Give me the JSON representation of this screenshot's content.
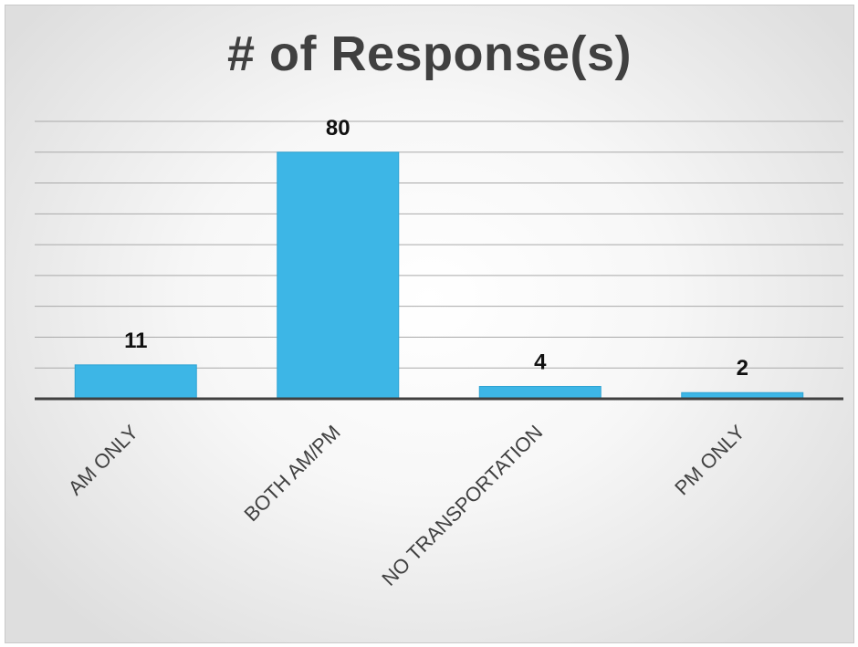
{
  "chart_data": {
    "type": "bar",
    "title": "# of Response(s)",
    "categories": [
      "AM ONLY",
      "BOTH AM/PM",
      "NO TRANSPORTATION",
      "PM ONLY"
    ],
    "values": [
      11,
      80,
      4,
      2
    ],
    "xlabel": "",
    "ylabel": "",
    "ylim": [
      0,
      90
    ],
    "grid": true,
    "gridline_step": 10,
    "legend": "none",
    "data_labels": true,
    "bar_color": "#3db6e6",
    "axis_color": "#404040"
  }
}
